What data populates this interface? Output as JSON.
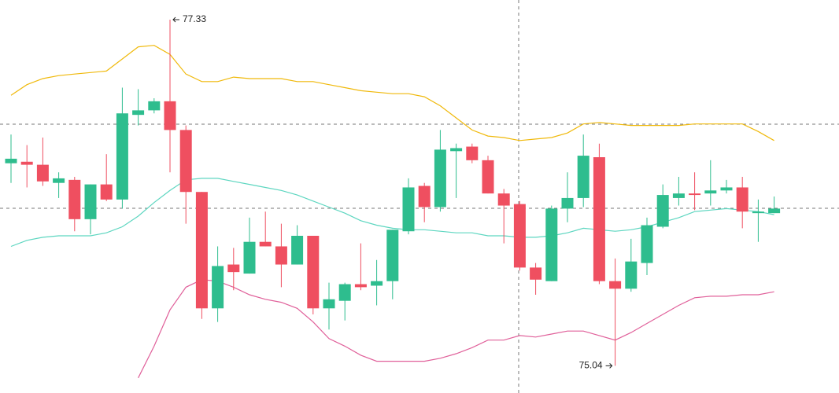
{
  "chart_data": {
    "type": "candlestick",
    "up_color": "#2ebd8e",
    "down_color": "#ef4f60",
    "ylim": [
      74.86,
      77.46
    ],
    "open": [
      76.38,
      76.39,
      76.37,
      76.25,
      76.27,
      76.01,
      76.24,
      76.14,
      76.7,
      76.73,
      76.79,
      76.6,
      76.19,
      75.42,
      75.71,
      75.65,
      75.86,
      75.83,
      75.71,
      75.9,
      75.42,
      75.47,
      75.58,
      75.57,
      75.6,
      75.93,
      76.23,
      76.09,
      76.46,
      76.49,
      76.4,
      76.18,
      76.11,
      75.69,
      75.6,
      76.08,
      76.15,
      76.42,
      75.6,
      75.55,
      75.72,
      75.96,
      76.15,
      76.18,
      76.18,
      76.2,
      76.22,
      76.05,
      76.05
    ],
    "high": [
      76.57,
      76.5,
      76.55,
      76.32,
      76.29,
      76.24,
      76.44,
      76.88,
      76.87,
      76.81,
      77.33,
      76.63,
      76.19,
      75.83,
      75.82,
      76.02,
      76.06,
      75.98,
      75.97,
      75.9,
      75.59,
      75.59,
      75.85,
      75.74,
      75.94,
      76.28,
      76.25,
      76.6,
      76.51,
      76.51,
      76.43,
      76.21,
      76.13,
      75.72,
      76.1,
      76.32,
      76.57,
      76.51,
      75.75,
      75.88,
      76.02,
      76.24,
      76.29,
      76.32,
      76.4,
      76.27,
      76.29,
      76.14,
      76.16
    ],
    "low": [
      76.25,
      76.22,
      76.23,
      76.15,
      75.93,
      75.91,
      76.13,
      76.08,
      76.63,
      76.71,
      76.32,
      75.98,
      75.35,
      75.33,
      75.54,
      75.65,
      75.83,
      75.56,
      75.71,
      75.38,
      75.28,
      75.34,
      75.54,
      75.44,
      75.48,
      75.91,
      75.99,
      76.06,
      76.15,
      76.38,
      76.18,
      75.85,
      75.67,
      75.51,
      75.6,
      75.99,
      76.09,
      75.58,
      75.04,
      75.53,
      75.64,
      75.95,
      76.1,
      76.07,
      76.1,
      76.18,
      75.95,
      75.86,
      76.05
    ],
    "close": [
      76.41,
      76.37,
      76.26,
      76.28,
      76.01,
      76.24,
      76.14,
      76.71,
      76.73,
      76.79,
      76.6,
      76.19,
      75.42,
      75.7,
      75.66,
      75.86,
      75.83,
      75.71,
      75.9,
      75.42,
      75.48,
      75.58,
      75.56,
      75.6,
      75.94,
      76.22,
      76.09,
      76.47,
      76.48,
      76.4,
      76.18,
      76.1,
      75.69,
      75.61,
      76.08,
      76.15,
      76.43,
      75.6,
      75.55,
      75.73,
      75.97,
      76.17,
      76.18,
      76.17,
      76.2,
      76.22,
      76.06,
      76.06,
      76.08
    ],
    "overlays": [
      {
        "color": "#f0b90b",
        "values": [
          76.83,
          76.9,
          76.94,
          76.96,
          76.97,
          76.98,
          76.99,
          77.07,
          77.15,
          77.16,
          77.1,
          76.97,
          76.92,
          76.92,
          76.95,
          76.94,
          76.94,
          76.94,
          76.92,
          76.92,
          76.9,
          76.88,
          76.86,
          76.85,
          76.84,
          76.84,
          76.82,
          76.76,
          76.68,
          76.6,
          76.56,
          76.55,
          76.53,
          76.54,
          76.55,
          76.58,
          76.64,
          76.65,
          76.64,
          76.63,
          76.63,
          76.63,
          76.63,
          76.64,
          76.64,
          76.64,
          76.64,
          76.59,
          76.53
        ]
      },
      {
        "color": "#5dd6c0",
        "values": [
          75.83,
          75.87,
          75.89,
          75.9,
          75.9,
          75.9,
          75.92,
          75.96,
          76.03,
          76.12,
          76.2,
          76.27,
          76.28,
          76.28,
          76.26,
          76.24,
          76.22,
          76.2,
          76.17,
          76.13,
          76.09,
          76.05,
          76.0,
          75.97,
          75.95,
          75.94,
          75.94,
          75.93,
          75.92,
          75.92,
          75.9,
          75.9,
          75.89,
          75.89,
          75.9,
          75.92,
          75.95,
          75.94,
          75.93,
          75.94,
          75.96,
          75.99,
          76.02,
          76.06,
          76.07,
          76.08,
          76.07,
          76.06,
          76.04
        ]
      },
      {
        "color": "#e0609a",
        "values": [
          null,
          null,
          null,
          null,
          null,
          null,
          null,
          null,
          74.96,
          75.17,
          75.41,
          75.56,
          75.61,
          75.6,
          75.56,
          75.51,
          75.48,
          75.46,
          75.42,
          75.33,
          75.22,
          75.17,
          75.11,
          75.07,
          75.07,
          75.07,
          75.07,
          75.09,
          75.12,
          75.16,
          75.21,
          75.21,
          75.24,
          75.23,
          75.25,
          75.27,
          75.27,
          75.24,
          75.21,
          75.26,
          75.32,
          75.38,
          75.44,
          75.49,
          75.5,
          75.5,
          75.51,
          75.51,
          75.53
        ]
      }
    ]
  }
}
